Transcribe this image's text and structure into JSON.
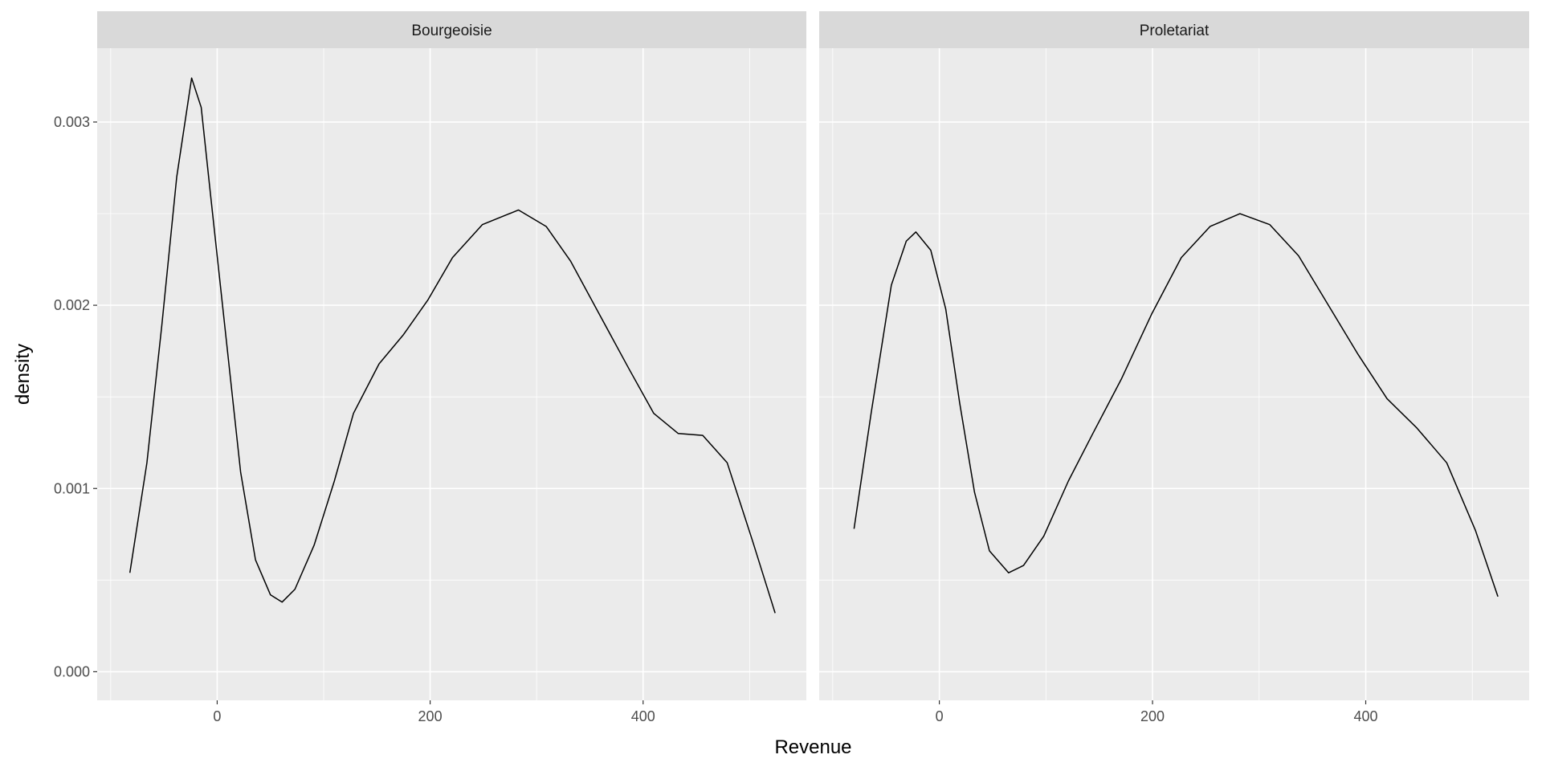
{
  "chart_data": [
    {
      "type": "line",
      "title": "Bourgeoisie",
      "x_label": "Revenue",
      "y_label": "density",
      "color": "#000000",
      "x": [
        -82,
        -66,
        -52,
        -38,
        -24,
        -15,
        -6,
        8,
        22,
        36,
        50,
        61,
        73,
        91,
        110,
        128,
        152,
        175,
        198,
        221,
        249,
        283,
        309,
        332,
        359,
        387,
        410,
        433,
        456,
        479,
        503,
        524
      ],
      "values": [
        0.00054,
        0.00114,
        0.00189,
        0.0027,
        0.00324,
        0.00308,
        0.00259,
        0.00184,
        0.00109,
        0.00061,
        0.00042,
        0.00038,
        0.00045,
        0.00069,
        0.00104,
        0.00141,
        0.00168,
        0.00184,
        0.00203,
        0.00226,
        0.00244,
        0.00252,
        0.00243,
        0.00224,
        0.00195,
        0.00165,
        0.00141,
        0.0013,
        0.00129,
        0.00114,
        0.00071,
        0.00032
      ],
      "xlim": [
        -112.7,
        553.3
      ],
      "ylim": [
        -0.000156,
        0.003403
      ],
      "xticks": [
        0,
        200,
        400
      ],
      "x_minor_ticks": [
        -100,
        100,
        300,
        500
      ],
      "yticks": [
        {
          "value": 0,
          "label": "0.000"
        },
        0.001,
        0.002,
        0.003
      ],
      "y_minor_ticks": [
        0.0005,
        0.0015,
        0.0025
      ],
      "grid": true
    },
    {
      "type": "line",
      "title": "Proletariat",
      "color": "#000000",
      "x": [
        -80,
        -64,
        -45,
        -31,
        -22,
        -8,
        6,
        19,
        33,
        47,
        65,
        79,
        98,
        121,
        144,
        171,
        199,
        227,
        254,
        282,
        310,
        337,
        365,
        393,
        420,
        448,
        476,
        503,
        524
      ],
      "values": [
        0.00078,
        0.00141,
        0.00211,
        0.00235,
        0.0024,
        0.0023,
        0.00198,
        0.00147,
        0.00098,
        0.00066,
        0.00054,
        0.00058,
        0.00074,
        0.00104,
        0.0013,
        0.0016,
        0.00195,
        0.00226,
        0.00243,
        0.0025,
        0.00244,
        0.00227,
        0.002,
        0.00173,
        0.00149,
        0.00133,
        0.00114,
        0.00077,
        0.00041
      ],
      "xlim": [
        -112.7,
        553.3
      ],
      "ylim": [
        -0.000156,
        0.003403
      ],
      "xticks": [
        0,
        200,
        400
      ],
      "x_minor_ticks": [
        -100,
        100,
        300,
        500
      ],
      "yticks": [
        0,
        0.001,
        0.002,
        0.003
      ],
      "y_minor_ticks": [
        0.0005,
        0.0015,
        0.0025
      ],
      "grid": true
    }
  ]
}
